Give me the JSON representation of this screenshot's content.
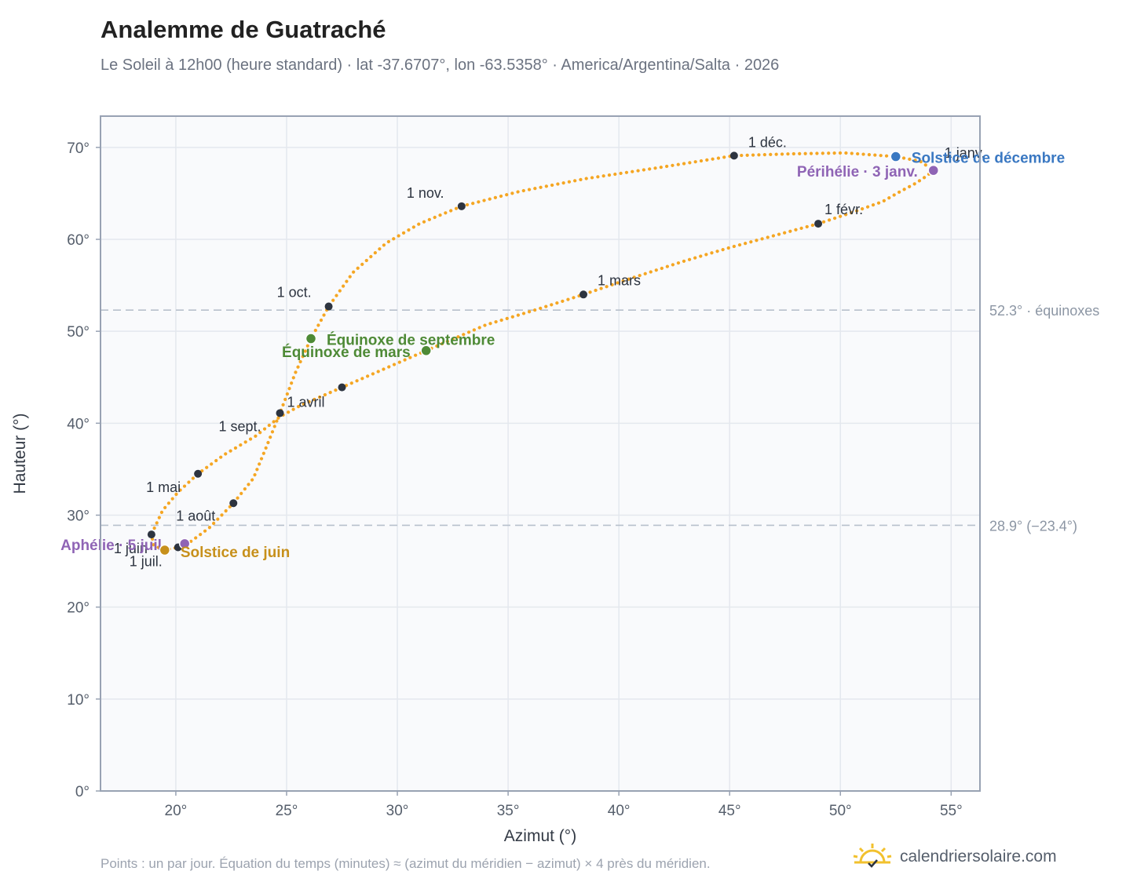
{
  "title": "Analemme de Guatraché",
  "subtitle": "Le Soleil à 12h00 (heure standard) · lat -37.6707°, lon -63.5358° · America/Argentina/Salta · 2026",
  "footnote": "Points : un par jour. Équation du temps (minutes) ≈ (azimut du méridien − azimut) × 4 près du méridien.",
  "brand": {
    "text": "calendriersolaire.com",
    "icon": "sun-logo-icon"
  },
  "colors": {
    "curve": "#f5a623",
    "month_dot": "#2d3440",
    "solstice_june": "#c7901b",
    "solstice_december": "#3a78c2",
    "equinox": "#4e8a36",
    "apsis": "#8f64b5",
    "reference_line": "#b8c0cc",
    "grid": "#e4e8ee",
    "plot_bg": "#f9fafc",
    "frame": "#98a2b3"
  },
  "chart_data": {
    "type": "scatter",
    "xlabel": "Azimut (°)",
    "ylabel": "Hauteur (°)",
    "xlim": [
      16.6,
      56.3
    ],
    "ylim": [
      0,
      73.4
    ],
    "x_ticks": [
      "20°",
      "25°",
      "30°",
      "35°",
      "40°",
      "45°",
      "50°",
      "55°"
    ],
    "x_tick_values": [
      20,
      25,
      30,
      35,
      40,
      45,
      50,
      55
    ],
    "y_ticks": [
      "0°",
      "10°",
      "20°",
      "30°",
      "40°",
      "50°",
      "60°",
      "70°"
    ],
    "y_tick_values": [
      0,
      10,
      20,
      30,
      40,
      50,
      60,
      70
    ],
    "grid": true,
    "reference_lines": [
      {
        "y": 52.3,
        "label": "52.3° · équinoxes"
      },
      {
        "y": 28.9,
        "label": "28.9° (−23.4°)"
      }
    ],
    "month_markers": [
      {
        "label": "1 janv.",
        "x": 54.2,
        "y": 67.5
      },
      {
        "label": "1 févr.",
        "x": 49.0,
        "y": 61.7
      },
      {
        "label": "1 mars",
        "x": 38.4,
        "y": 54.0
      },
      {
        "label": "1 avril",
        "x": 27.5,
        "y": 43.9
      },
      {
        "label": "1 mai",
        "x": 21.0,
        "y": 34.5
      },
      {
        "label": "1 juin",
        "x": 18.9,
        "y": 27.9
      },
      {
        "label": "1 juil.",
        "x": 20.1,
        "y": 26.5
      },
      {
        "label": "1 août",
        "x": 22.6,
        "y": 31.3
      },
      {
        "label": "1 sept.",
        "x": 24.7,
        "y": 41.1
      },
      {
        "label": "1 oct.",
        "x": 26.9,
        "y": 52.7
      },
      {
        "label": "1 nov.",
        "x": 32.9,
        "y": 63.6
      },
      {
        "label": "1 déc.",
        "x": 45.2,
        "y": 69.1
      }
    ],
    "events": [
      {
        "label": "Solstice de décembre",
        "x": 52.5,
        "y": 69.0,
        "kind": "solstice_december"
      },
      {
        "label": "Périhélie · 3 janv.",
        "x": 54.2,
        "y": 67.5,
        "kind": "apsis"
      },
      {
        "label": "Équinoxe de septembre",
        "x": 26.1,
        "y": 49.2,
        "kind": "equinox"
      },
      {
        "label": "Équinoxe de mars",
        "x": 31.3,
        "y": 47.9,
        "kind": "equinox"
      },
      {
        "label": "Aphélie · 5 juil.",
        "x": 20.4,
        "y": 26.9,
        "kind": "apsis"
      },
      {
        "label": "Solstice de juin",
        "x": 19.5,
        "y": 26.2,
        "kind": "solstice_june"
      }
    ],
    "daily_path": [
      [
        54.2,
        67.5
      ],
      [
        53.9,
        66.9
      ],
      [
        53.4,
        66.1
      ],
      [
        52.7,
        65.2
      ],
      [
        51.9,
        64.1
      ],
      [
        50.5,
        62.9
      ],
      [
        49.0,
        61.7
      ],
      [
        47.0,
        60.4
      ],
      [
        45.0,
        59.1
      ],
      [
        42.9,
        57.6
      ],
      [
        40.6,
        55.8
      ],
      [
        38.4,
        54.0
      ],
      [
        36.2,
        52.3
      ],
      [
        34.0,
        50.7
      ],
      [
        31.3,
        47.9
      ],
      [
        29.4,
        45.9
      ],
      [
        27.5,
        43.9
      ],
      [
        25.6,
        41.9
      ],
      [
        24.7,
        40.7
      ],
      [
        23.6,
        38.6
      ],
      [
        22.2,
        36.6
      ],
      [
        21.0,
        34.5
      ],
      [
        20.1,
        32.5
      ],
      [
        19.4,
        30.5
      ],
      [
        18.9,
        27.9
      ],
      [
        19.0,
        26.7
      ],
      [
        19.5,
        26.2
      ],
      [
        20.1,
        26.5
      ],
      [
        20.6,
        27.0
      ],
      [
        21.5,
        28.6
      ],
      [
        22.6,
        31.3
      ],
      [
        23.5,
        34.0
      ],
      [
        24.1,
        37.5
      ],
      [
        24.7,
        41.1
      ],
      [
        25.4,
        45.5
      ],
      [
        26.1,
        49.2
      ],
      [
        26.9,
        52.7
      ],
      [
        28.0,
        56.4
      ],
      [
        29.5,
        59.6
      ],
      [
        31.0,
        61.7
      ],
      [
        32.9,
        63.6
      ],
      [
        35.5,
        65.2
      ],
      [
        38.5,
        66.6
      ],
      [
        41.8,
        67.8
      ],
      [
        45.2,
        69.1
      ],
      [
        47.8,
        69.3
      ],
      [
        50.2,
        69.4
      ],
      [
        52.5,
        69.0
      ],
      [
        53.6,
        68.5
      ],
      [
        54.2,
        67.5
      ]
    ]
  }
}
